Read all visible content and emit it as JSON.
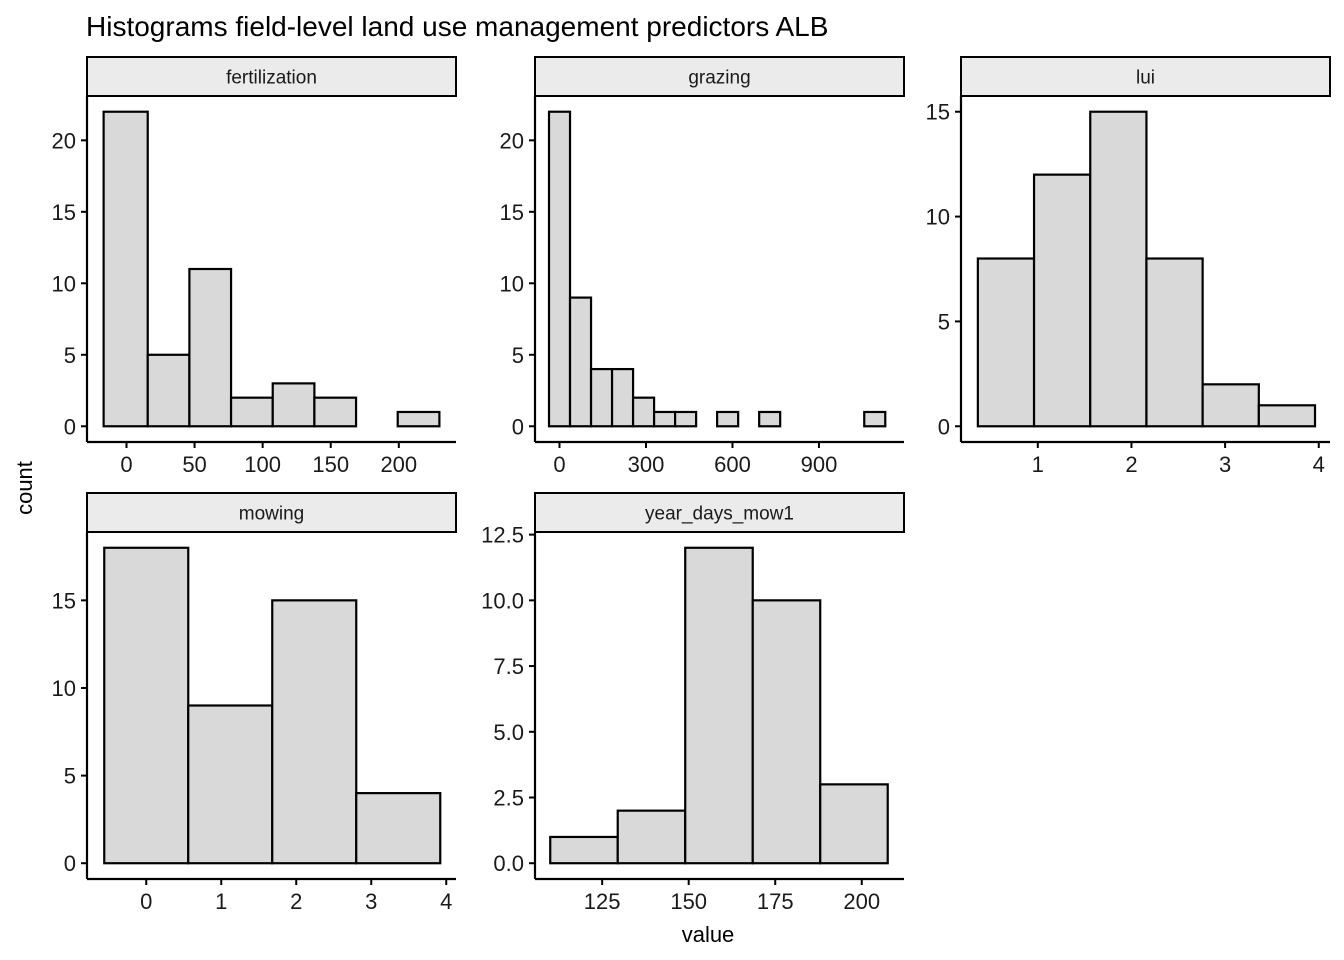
{
  "chart_data": {
    "type": "bar",
    "title": "Histograms field-level land use management predictors ALB",
    "xlabel": "value",
    "ylabel": "count",
    "grid": false,
    "panels": [
      {
        "label": "fertilization",
        "bins": [
          [
            -16.8,
            15.6
          ],
          [
            15.6,
            46.2
          ],
          [
            46.2,
            76.8
          ],
          [
            76.8,
            107.4
          ],
          [
            107.4,
            138.0
          ],
          [
            138.0,
            168.6
          ],
          [
            168.6,
            199.2
          ],
          [
            199.2,
            229.8
          ]
        ],
        "values": [
          22,
          5,
          11,
          2,
          3,
          2,
          0,
          1
        ],
        "xlim": [
          -29,
          242
        ],
        "ylim": [
          -1.1,
          23.1
        ],
        "xticks": [
          0,
          50,
          100,
          150,
          200
        ],
        "xtick_labels": [
          "0",
          "50",
          "100",
          "150",
          "200"
        ],
        "yticks": [
          0,
          5,
          10,
          15,
          20
        ],
        "ytick_labels": [
          "0",
          "5",
          "10",
          "15",
          "20"
        ]
      },
      {
        "label": "grazing",
        "bins": [
          [
            -36.4,
            36.5
          ],
          [
            36.5,
            109.4
          ],
          [
            109.4,
            182.3
          ],
          [
            182.3,
            255.2
          ],
          [
            255.2,
            328.1
          ],
          [
            328.1,
            401.0
          ],
          [
            401.0,
            473.9
          ],
          [
            473.9,
            546.8
          ],
          [
            546.8,
            619.7
          ],
          [
            619.7,
            692.6
          ],
          [
            692.6,
            765.5
          ],
          [
            765.5,
            838.4
          ],
          [
            838.4,
            911.3
          ],
          [
            911.3,
            984.2
          ],
          [
            984.2,
            1057.1
          ],
          [
            1057.1,
            1130.0
          ]
        ],
        "values": [
          22,
          9,
          4,
          4,
          2,
          1,
          1,
          0,
          1,
          0,
          1,
          0,
          0,
          0,
          0,
          1
        ],
        "xlim": [
          -85,
          1195
        ],
        "ylim": [
          -1.1,
          23.1
        ],
        "xticks": [
          0,
          300,
          600,
          900
        ],
        "xtick_labels": [
          "0",
          "300",
          "600",
          "900"
        ],
        "yticks": [
          0,
          5,
          10,
          15,
          20
        ],
        "ytick_labels": [
          "0",
          "5",
          "10",
          "15",
          "20"
        ]
      },
      {
        "label": "lui",
        "bins": [
          [
            0.36,
            0.96
          ],
          [
            0.96,
            1.56
          ],
          [
            1.56,
            2.16
          ],
          [
            2.16,
            2.76
          ],
          [
            2.76,
            3.36
          ],
          [
            3.36,
            3.96
          ]
        ],
        "values": [
          8,
          12,
          15,
          8,
          2,
          1
        ],
        "xlim": [
          0.18,
          4.12
        ],
        "ylim": [
          -0.75,
          15.75
        ],
        "xticks": [
          1,
          2,
          3,
          4
        ],
        "xtick_labels": [
          "1",
          "2",
          "3",
          "4"
        ],
        "yticks": [
          0,
          5,
          10,
          15
        ],
        "ytick_labels": [
          "0",
          "5",
          "10",
          "15"
        ]
      },
      {
        "label": "mowing",
        "bins": [
          [
            -0.56,
            0.56
          ],
          [
            0.56,
            1.68
          ],
          [
            1.68,
            2.8
          ],
          [
            2.8,
            3.92
          ]
        ],
        "values": [
          18,
          9,
          15,
          4
        ],
        "xlim": [
          -0.79,
          4.13
        ],
        "ylim": [
          -0.9,
          18.9
        ],
        "xticks": [
          0,
          1,
          2,
          3,
          4
        ],
        "xtick_labels": [
          "0",
          "1",
          "2",
          "3",
          "4"
        ],
        "yticks": [
          0,
          5,
          10,
          15
        ],
        "ytick_labels": [
          "0",
          "5",
          "10",
          "15"
        ]
      },
      {
        "label": "year_days_mow1",
        "bins": [
          [
            110,
            129.5
          ],
          [
            129.5,
            149
          ],
          [
            149,
            168.5
          ],
          [
            168.5,
            188
          ],
          [
            188,
            207.5
          ]
        ],
        "values": [
          1,
          2,
          12,
          10,
          3
        ],
        "xlim": [
          105.6,
          212.2
        ],
        "ylim": [
          -0.6,
          12.6
        ],
        "xticks": [
          125,
          150,
          175,
          200
        ],
        "xtick_labels": [
          "125",
          "150",
          "175",
          "200"
        ],
        "yticks": [
          0,
          2.5,
          5,
          7.5,
          10,
          12.5
        ],
        "ytick_labels": [
          "0.0",
          "2.5",
          "5.0",
          "7.5",
          "10.0",
          "12.5"
        ]
      }
    ]
  }
}
